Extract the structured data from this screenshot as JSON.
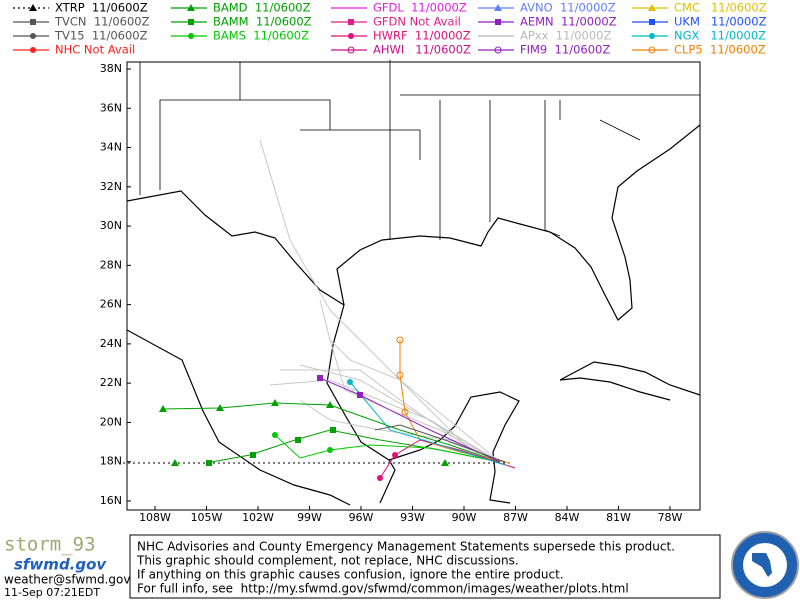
{
  "legend": [
    [
      {
        "label": "XTRP  11/0600Z",
        "color": "#000000",
        "marker": "triangle",
        "dash": true
      },
      {
        "label": "TVCN  11/0600Z",
        "color": "#555555",
        "marker": "square"
      },
      {
        "label": "TV15  11/0600Z",
        "color": "#555555",
        "marker": "circle"
      },
      {
        "label": "NHC Not Avail",
        "color": "#ff2020",
        "marker": "circle"
      }
    ],
    [
      {
        "label": "BAMD  11/0600Z",
        "color": "#00a000",
        "marker": "triangle"
      },
      {
        "label": "BAMM  11/0600Z",
        "color": "#00a000",
        "marker": "square"
      },
      {
        "label": "BAMS  11/0600Z",
        "color": "#00c800",
        "marker": "circle"
      }
    ],
    [
      {
        "label": "GFDL  11/0000Z",
        "color": "#e020e0",
        "marker": "none"
      },
      {
        "label": "GFDN Not Avail",
        "color": "#e0208a",
        "marker": "square"
      },
      {
        "label": "HWRF  11/0000Z",
        "color": "#e0107a",
        "marker": "circle"
      },
      {
        "label": "AHWI   11/0600Z",
        "color": "#c8108a",
        "marker": "ring"
      }
    ],
    [
      {
        "label": "AVNO  11/0000Z",
        "color": "#6080ff",
        "marker": "triangle"
      },
      {
        "label": "AEMN  11/0000Z",
        "color": "#9020c0",
        "marker": "square"
      },
      {
        "label": "APxx  11/0000Z",
        "color": "#b8b8b8",
        "marker": "none"
      },
      {
        "label": "FIM9  11/0600Z",
        "color": "#9020c0",
        "marker": "ring"
      }
    ],
    [
      {
        "label": "CMC   11/0600Z",
        "color": "#e0c000",
        "marker": "triangle"
      },
      {
        "label": "UKM   11/0000Z",
        "color": "#2050ff",
        "marker": "square"
      },
      {
        "label": "NGX   11/0000Z",
        "color": "#00b8c8",
        "marker": "circle"
      },
      {
        "label": "CLP5  11/0600Z",
        "color": "#f08000",
        "marker": "ring"
      }
    ]
  ],
  "map": {
    "lat_labels": [
      "38N",
      "36N",
      "34N",
      "32N",
      "30N",
      "28N",
      "26N",
      "24N",
      "22N",
      "20N",
      "18N",
      "16N"
    ],
    "lon_labels": [
      "108W",
      "105W",
      "102W",
      "99W",
      "96W",
      "93W",
      "90W",
      "87W",
      "84W",
      "81W",
      "78W"
    ]
  },
  "footer": {
    "storm": "storm_93",
    "site": "sfwmd.gov",
    "email": "weather@sfwmd.gov",
    "timestamp": "11-Sep 07:21EDT",
    "notice": [
      "NHC Advisories and County Emergency Management Statements supersede this product.",
      "This graphic should complement, not replace, NHC discussions.",
      "If anything on this graphic causes confusion, ignore the entire product.",
      "For full info, see  http://my.sfwmd.gov/sfwmd/common/images/weather/plots.html"
    ]
  }
}
